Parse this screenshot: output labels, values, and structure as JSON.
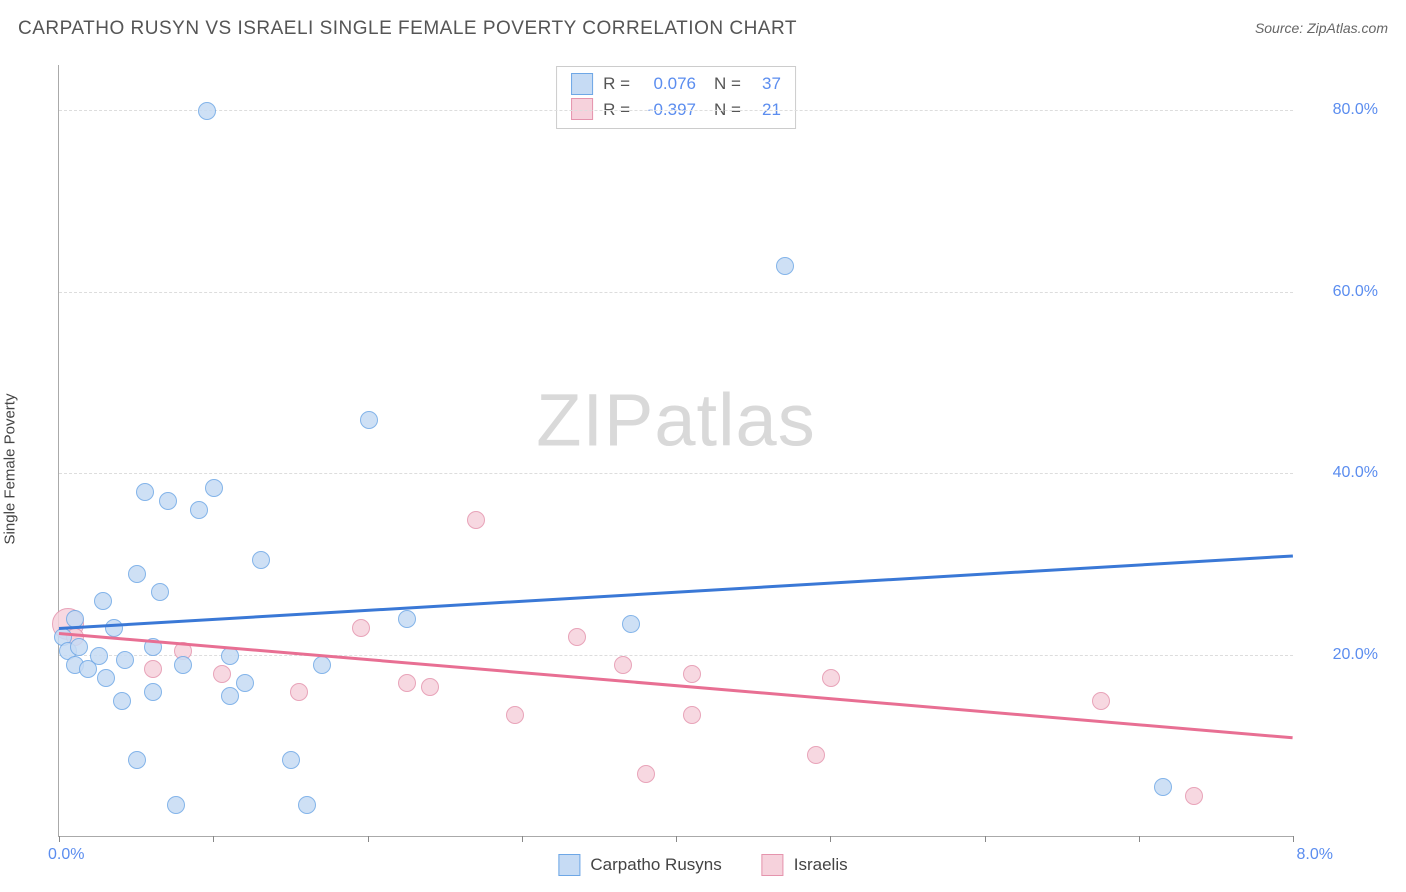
{
  "title": "CARPATHO RUSYN VS ISRAELI SINGLE FEMALE POVERTY CORRELATION CHART",
  "source": "Source: ZipAtlas.com",
  "ylabel": "Single Female Poverty",
  "watermark_a": "ZIP",
  "watermark_b": "atlas",
  "chart": {
    "type": "scatter",
    "xlim": [
      0,
      8
    ],
    "ylim": [
      0,
      85
    ],
    "xtick_positions": [
      0,
      1,
      2,
      3,
      4,
      5,
      6,
      7,
      8
    ],
    "xtick_labels_shown": {
      "min": "0.0%",
      "max": "8.0%"
    },
    "ytick_positions": [
      20,
      40,
      60,
      80
    ],
    "ytick_labels": [
      "20.0%",
      "40.0%",
      "60.0%",
      "80.0%"
    ],
    "grid_color": "#dddddd",
    "grid_dash": true,
    "axis_color": "#aaaaaa",
    "background_color": "#ffffff",
    "marker_radius": 8,
    "marker_radius_large": 15,
    "series": [
      {
        "name": "Carpatho Rusyns",
        "fill": "#c6dbf4",
        "stroke": "#6ea7e6",
        "line_color": "#3a78d6",
        "R": "0.076",
        "N": "37",
        "regression": {
          "x1": 0,
          "y1": 23,
          "x2": 8,
          "y2": 31
        },
        "points": [
          [
            0.02,
            22
          ],
          [
            0.05,
            20.5
          ],
          [
            0.1,
            24
          ],
          [
            0.1,
            19
          ],
          [
            0.12,
            21
          ],
          [
            0.18,
            18.5
          ],
          [
            0.25,
            20
          ],
          [
            0.28,
            26
          ],
          [
            0.3,
            17.5
          ],
          [
            0.35,
            23
          ],
          [
            0.4,
            15
          ],
          [
            0.42,
            19.5
          ],
          [
            0.5,
            8.5
          ],
          [
            0.5,
            29
          ],
          [
            0.55,
            38
          ],
          [
            0.6,
            21
          ],
          [
            0.6,
            16
          ],
          [
            0.65,
            27
          ],
          [
            0.7,
            37
          ],
          [
            0.75,
            3.5
          ],
          [
            0.8,
            19
          ],
          [
            0.9,
            36
          ],
          [
            0.95,
            80
          ],
          [
            1.0,
            38.5
          ],
          [
            1.1,
            15.5
          ],
          [
            1.1,
            20
          ],
          [
            1.2,
            17
          ],
          [
            1.3,
            30.5
          ],
          [
            1.5,
            8.5
          ],
          [
            1.6,
            3.5
          ],
          [
            1.7,
            19
          ],
          [
            2.0,
            46
          ],
          [
            2.25,
            24
          ],
          [
            3.7,
            23.5
          ],
          [
            4.7,
            63
          ],
          [
            7.15,
            5.5
          ]
        ]
      },
      {
        "name": "Israelis",
        "fill": "#f6d2dc",
        "stroke": "#e594ad",
        "line_color": "#e86f93",
        "R": "-0.397",
        "N": "21",
        "regression": {
          "x1": 0,
          "y1": 22.5,
          "x2": 8,
          "y2": 11
        },
        "points": [
          [
            0.05,
            23.5,
            15
          ],
          [
            0.1,
            22
          ],
          [
            0.6,
            18.5
          ],
          [
            0.8,
            20.5
          ],
          [
            1.05,
            18
          ],
          [
            1.55,
            16
          ],
          [
            1.95,
            23
          ],
          [
            2.25,
            17
          ],
          [
            2.4,
            16.5
          ],
          [
            2.7,
            35
          ],
          [
            2.95,
            13.5
          ],
          [
            3.35,
            22
          ],
          [
            3.65,
            19
          ],
          [
            3.8,
            7
          ],
          [
            4.1,
            18
          ],
          [
            4.1,
            13.5
          ],
          [
            4.9,
            9
          ],
          [
            5.0,
            17.5
          ],
          [
            6.75,
            15
          ],
          [
            7.35,
            4.5
          ]
        ]
      }
    ]
  },
  "stats_box": {
    "rows": [
      {
        "swatch_fill": "#c6dbf4",
        "swatch_stroke": "#6ea7e6",
        "R_label": "R =",
        "R": "0.076",
        "N_label": "N =",
        "N": "37"
      },
      {
        "swatch_fill": "#f6d2dc",
        "swatch_stroke": "#e594ad",
        "R_label": "R =",
        "R": "-0.397",
        "N_label": "N =",
        "N": "21"
      }
    ]
  },
  "legend": [
    {
      "label": "Carpatho Rusyns",
      "fill": "#c6dbf4",
      "stroke": "#6ea7e6"
    },
    {
      "label": "Israelis",
      "fill": "#f6d2dc",
      "stroke": "#e594ad"
    }
  ]
}
